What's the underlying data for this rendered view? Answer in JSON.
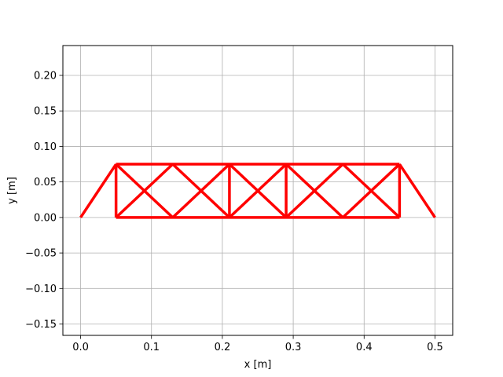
{
  "chart_data": {
    "type": "line",
    "title": "",
    "xlabel": "x [m]",
    "ylabel": "y [m]",
    "xlim": [
      -0.025,
      0.525
    ],
    "ylim": [
      -0.166,
      0.242
    ],
    "grid": true,
    "line_color": "#ff0000",
    "xticks": [
      0.0,
      0.1,
      0.2,
      0.3,
      0.4,
      0.5
    ],
    "xtick_labels": [
      "0.0",
      "0.1",
      "0.2",
      "0.3",
      "0.4",
      "0.5"
    ],
    "yticks": [
      -0.15,
      -0.1,
      -0.05,
      0.0,
      0.05,
      0.1,
      0.15,
      0.2
    ],
    "ytick_labels": [
      "−0.15",
      "−0.10",
      "−0.05",
      "0.00",
      "0.05",
      "0.10",
      "0.15",
      "0.20"
    ],
    "members": [
      [
        [
          0.0,
          0.0
        ],
        [
          0.05,
          0.075
        ]
      ],
      [
        [
          0.45,
          0.075
        ],
        [
          0.5,
          0.0
        ]
      ],
      [
        [
          0.05,
          0.0
        ],
        [
          0.45,
          0.0
        ]
      ],
      [
        [
          0.05,
          0.075
        ],
        [
          0.45,
          0.075
        ]
      ],
      [
        [
          0.05,
          0.0
        ],
        [
          0.05,
          0.075
        ]
      ],
      [
        [
          0.21,
          0.0
        ],
        [
          0.21,
          0.075
        ]
      ],
      [
        [
          0.29,
          0.0
        ],
        [
          0.29,
          0.075
        ]
      ],
      [
        [
          0.45,
          0.0
        ],
        [
          0.45,
          0.075
        ]
      ],
      [
        [
          0.05,
          0.0
        ],
        [
          0.13,
          0.075
        ]
      ],
      [
        [
          0.05,
          0.075
        ],
        [
          0.13,
          0.0
        ]
      ],
      [
        [
          0.13,
          0.0
        ],
        [
          0.21,
          0.075
        ]
      ],
      [
        [
          0.13,
          0.075
        ],
        [
          0.21,
          0.0
        ]
      ],
      [
        [
          0.21,
          0.0
        ],
        [
          0.29,
          0.075
        ]
      ],
      [
        [
          0.21,
          0.075
        ],
        [
          0.29,
          0.0
        ]
      ],
      [
        [
          0.29,
          0.0
        ],
        [
          0.37,
          0.075
        ]
      ],
      [
        [
          0.29,
          0.075
        ],
        [
          0.37,
          0.0
        ]
      ],
      [
        [
          0.37,
          0.0
        ],
        [
          0.45,
          0.075
        ]
      ],
      [
        [
          0.37,
          0.075
        ],
        [
          0.45,
          0.0
        ]
      ]
    ]
  }
}
